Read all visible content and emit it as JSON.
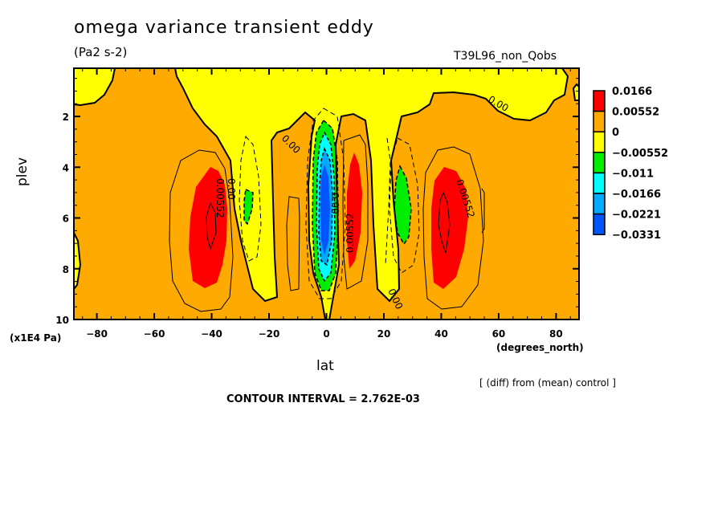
{
  "chart_data": {
    "type": "contour",
    "title": "omega variance transient eddy",
    "units": "(Pa2 s-2)",
    "run_label": "T39L96_non_Qobs",
    "xlabel": "lat",
    "x_units": "(degrees_north)",
    "ylabel": "plev",
    "y_units": "(x1E4 Pa)",
    "xlim": [
      -88,
      88
    ],
    "ylim": [
      10,
      0.1
    ],
    "x_ticks": [
      -80,
      -60,
      -40,
      -20,
      0,
      20,
      40,
      60,
      80
    ],
    "x_tick_labels": [
      "-80",
      "-60",
      "-40",
      "-20",
      "0",
      "20",
      "40",
      "60",
      "80"
    ],
    "y_ticks": [
      2,
      4,
      6,
      8,
      10
    ],
    "y_tick_labels": [
      "2",
      "4",
      "6",
      "8",
      "10"
    ],
    "note": "[ (diff) from (mean) control ]",
    "contour_interval": "CONTOUR INTERVAL = 2.762E-03",
    "contour_labels": [
      "0.00552",
      "0.00",
      "0.00552",
      "0.00",
      "0.00552",
      "0.00",
      "0.00",
      "0.00"
    ],
    "legend": {
      "levels": [
        "0.0166",
        "0.00552",
        "0",
        "-0.00552",
        "-0.011",
        "-0.0166",
        "-0.0221",
        "-0.0331"
      ],
      "colors": [
        "#ff0000",
        "#ffaa00",
        "#ffff00",
        "#00ee00",
        "#00ffff",
        "#00aaff",
        "#0055ff"
      ]
    },
    "features": [
      {
        "name": "positive-max-sh",
        "lat": -40,
        "plev": 6.2,
        "sign": "positive"
      },
      {
        "name": "negative-min-sh",
        "lat": -28,
        "plev": 5.5,
        "sign": "negative"
      },
      {
        "name": "equatorial-minimum",
        "lat": -1,
        "plev": 5.5,
        "sign": "negative"
      },
      {
        "name": "positive-max-eq-north",
        "lat": 10,
        "plev": 6,
        "sign": "positive"
      },
      {
        "name": "negative-min-nh",
        "lat": 26,
        "plev": 5.5,
        "sign": "negative"
      },
      {
        "name": "positive-max-nh",
        "lat": 42,
        "plev": 6.2,
        "sign": "positive"
      }
    ]
  }
}
